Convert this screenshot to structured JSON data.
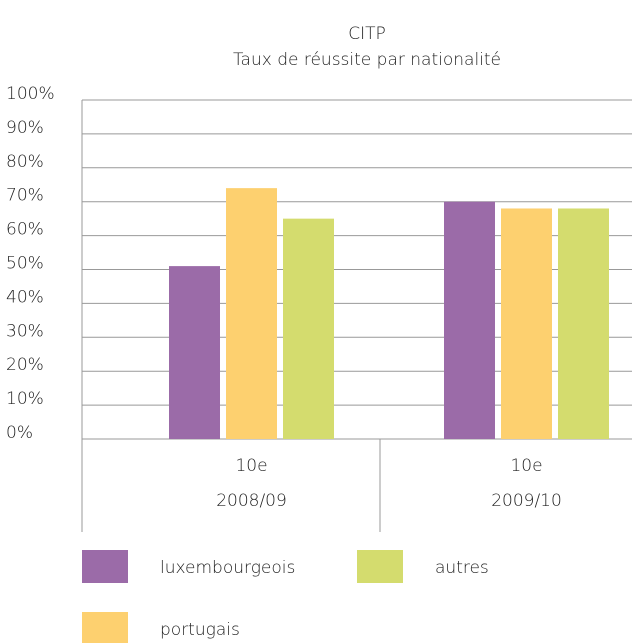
{
  "chart_data": {
    "type": "bar",
    "title": "CITP",
    "subtitle": "Taux de réussite par nationalité",
    "categories": [
      [
        "10e",
        "2008/09"
      ],
      [
        "10e",
        "2009/10"
      ]
    ],
    "series": [
      {
        "name": "luxembourgeois",
        "color": "#9b6ba8",
        "values": [
          51,
          70
        ]
      },
      {
        "name": "portugais",
        "color": "#fdd06f",
        "values": [
          74,
          68
        ]
      },
      {
        "name": "autres",
        "color": "#d4dc6e",
        "values": [
          65,
          68
        ]
      }
    ],
    "ylim": [
      0,
      100
    ],
    "yticks": [
      {
        "value": 0,
        "label": "0%"
      },
      {
        "value": 10,
        "label": "10%"
      },
      {
        "value": 20,
        "label": "20%"
      },
      {
        "value": 30,
        "label": "30%"
      },
      {
        "value": 40,
        "label": "40%"
      },
      {
        "value": 50,
        "label": "50%"
      },
      {
        "value": 60,
        "label": "60%"
      },
      {
        "value": 70,
        "label": "70%"
      },
      {
        "value": 80,
        "label": "80%"
      },
      {
        "value": 90,
        "label": "90%"
      },
      {
        "value": 100,
        "label": "100%"
      }
    ],
    "grid": true
  }
}
